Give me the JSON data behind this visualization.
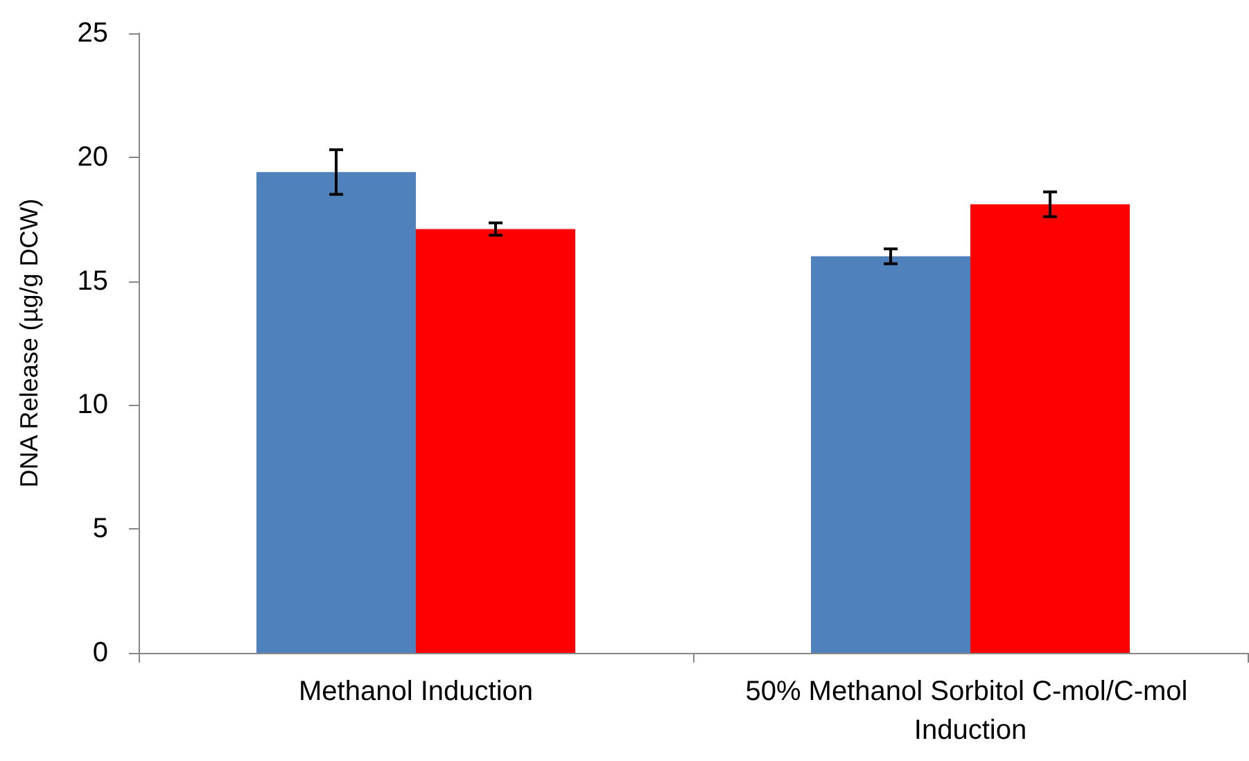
{
  "chart_data": {
    "type": "bar",
    "ylabel": "DNA Release (µg/g DCW)",
    "categories": [
      "Methanol Induction",
      "50% Methanol Sorbitol C-mol/C-mol Induction"
    ],
    "series": [
      {
        "color": "#4f81bd",
        "values": [
          19.4,
          16.0
        ],
        "errors": [
          0.9,
          0.3
        ]
      },
      {
        "color": "#ff0000",
        "values": [
          17.1,
          18.1
        ],
        "errors": [
          0.25,
          0.5
        ]
      }
    ],
    "ylim": [
      0,
      25
    ],
    "yticks": [
      0,
      5,
      10,
      15,
      20,
      25
    ]
  }
}
